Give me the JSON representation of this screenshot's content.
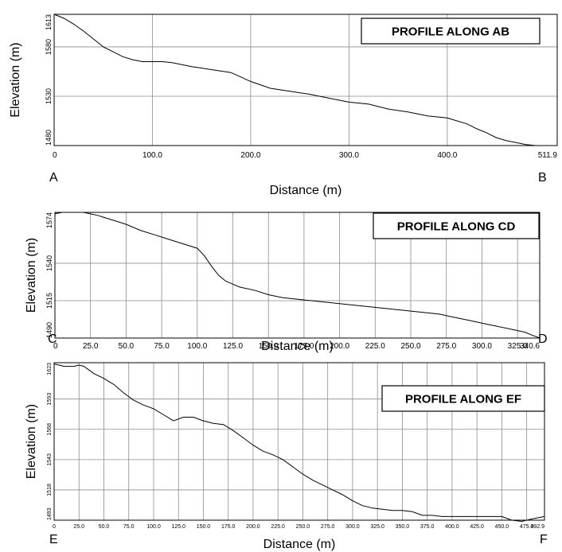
{
  "chart_data": [
    {
      "type": "line",
      "title": "PROFILE ALONG AB",
      "xlabel": "Distance (m)",
      "ylabel": "Elevation (m)",
      "start_label": "A",
      "end_label": "B",
      "xlim": [
        0,
        511.9
      ],
      "ylim": [
        1480,
        1613
      ],
      "x_ticks": [
        "0",
        "100.0",
        "200.0",
        "300.0",
        "400.0",
        "511.9"
      ],
      "x_tick_values": [
        0,
        100,
        200,
        300,
        400,
        511.9
      ],
      "y_ticks": [
        "1480",
        "1530",
        "1580",
        "1613"
      ],
      "y_tick_values": [
        1480,
        1530,
        1580,
        1613
      ],
      "grid": true,
      "series": [
        {
          "x": [
            0,
            10,
            20,
            30,
            40,
            50,
            60,
            70,
            80,
            90,
            100,
            110,
            120,
            140,
            160,
            180,
            200,
            220,
            240,
            260,
            280,
            300,
            320,
            340,
            360,
            380,
            400,
            410,
            420,
            430,
            440,
            450,
            460,
            470,
            480,
            490,
            511.9
          ],
          "y": [
            1613,
            1609,
            1603,
            1596,
            1588,
            1580,
            1575,
            1570,
            1567,
            1565,
            1565,
            1565,
            1564,
            1560,
            1557,
            1554,
            1545,
            1538,
            1535,
            1532,
            1528,
            1524,
            1522,
            1517,
            1514,
            1510,
            1508,
            1505,
            1502,
            1497,
            1493,
            1488,
            1485,
            1483,
            1481,
            1480,
            1480
          ]
        }
      ]
    },
    {
      "type": "line",
      "title": "PROFILE ALONG CD",
      "xlabel": "Distance (m)",
      "ylabel": "Elevation (m)",
      "start_label": "C",
      "end_label": "D",
      "xlim": [
        0,
        340.6
      ],
      "ylim": [
        1490,
        1574
      ],
      "x_ticks": [
        "0",
        "25.0",
        "50.0",
        "75.0",
        "100.0",
        "125.0",
        "150.0",
        "175.0",
        "200.0",
        "225.0",
        "250.0",
        "275.0",
        "300.0",
        "325.0",
        "340.6"
      ],
      "x_tick_values": [
        0,
        25,
        50,
        75,
        100,
        125,
        150,
        175,
        200,
        225,
        250,
        275,
        300,
        325,
        340.6
      ],
      "y_ticks": [
        "1490",
        "1515",
        "1540",
        "1574"
      ],
      "y_tick_values": [
        1490,
        1515,
        1540,
        1574
      ],
      "grid": true,
      "series": [
        {
          "x": [
            0,
            5,
            10,
            15,
            20,
            25,
            30,
            40,
            50,
            60,
            70,
            80,
            90,
            100,
            105,
            110,
            115,
            120,
            125,
            130,
            140,
            150,
            160,
            170,
            180,
            190,
            200,
            210,
            220,
            230,
            240,
            250,
            260,
            270,
            280,
            290,
            300,
            310,
            320,
            330,
            335,
            340.6
          ],
          "y": [
            1573,
            1574,
            1574,
            1574,
            1574,
            1573,
            1572,
            1569,
            1566,
            1562,
            1559,
            1556,
            1553,
            1550,
            1545,
            1538,
            1532,
            1528,
            1526,
            1524,
            1522,
            1519,
            1517,
            1516,
            1515,
            1514,
            1513,
            1512,
            1511,
            1510,
            1509,
            1508,
            1507,
            1506,
            1504,
            1502,
            1500,
            1498,
            1496,
            1494,
            1492,
            1490
          ]
        }
      ]
    },
    {
      "type": "line",
      "title": "PROFILE ALONG EF",
      "xlabel": "Distance (m)",
      "ylabel": "Elevation (m)",
      "start_label": "E",
      "end_label": "F",
      "xlim": [
        0,
        492.9
      ],
      "ylim": [
        1493,
        1623
      ],
      "x_ticks": [
        "0",
        "25.0",
        "50.0",
        "75.0",
        "100.0",
        "125.0",
        "150.0",
        "175.0",
        "200.0",
        "225.0",
        "250.0",
        "275.0",
        "300.0",
        "325.0",
        "350.0",
        "375.0",
        "400.0",
        "425.0",
        "450.0",
        "475.0",
        "492.9"
      ],
      "x_tick_values": [
        0,
        25,
        50,
        75,
        100,
        125,
        150,
        175,
        200,
        225,
        250,
        275,
        300,
        325,
        350,
        375,
        400,
        425,
        450,
        475,
        492.9
      ],
      "y_ticks": [
        "1493",
        "1518",
        "1543",
        "1568",
        "1593",
        "1623"
      ],
      "y_tick_values": [
        1493,
        1518,
        1543,
        1568,
        1593,
        1623
      ],
      "grid": true,
      "series": [
        {
          "x": [
            0,
            5,
            10,
            15,
            20,
            25,
            30,
            40,
            50,
            60,
            70,
            80,
            90,
            100,
            110,
            120,
            130,
            140,
            150,
            160,
            170,
            180,
            190,
            200,
            210,
            220,
            230,
            240,
            250,
            260,
            270,
            280,
            290,
            300,
            310,
            320,
            330,
            340,
            350,
            360,
            370,
            380,
            390,
            400,
            410,
            420,
            430,
            440,
            450,
            460,
            470,
            480,
            492.9
          ],
          "y": [
            1622,
            1621,
            1620,
            1620,
            1620,
            1621,
            1620,
            1614,
            1610,
            1605,
            1598,
            1592,
            1588,
            1585,
            1580,
            1575,
            1578,
            1578,
            1575,
            1573,
            1572,
            1567,
            1561,
            1555,
            1550,
            1547,
            1543,
            1537,
            1531,
            1526,
            1522,
            1518,
            1514,
            1509,
            1505,
            1503,
            1502,
            1501,
            1501,
            1500,
            1497,
            1497,
            1496,
            1496,
            1496,
            1496,
            1496,
            1496,
            1496,
            1493,
            1492,
            1494,
            1496
          ]
        }
      ]
    }
  ]
}
